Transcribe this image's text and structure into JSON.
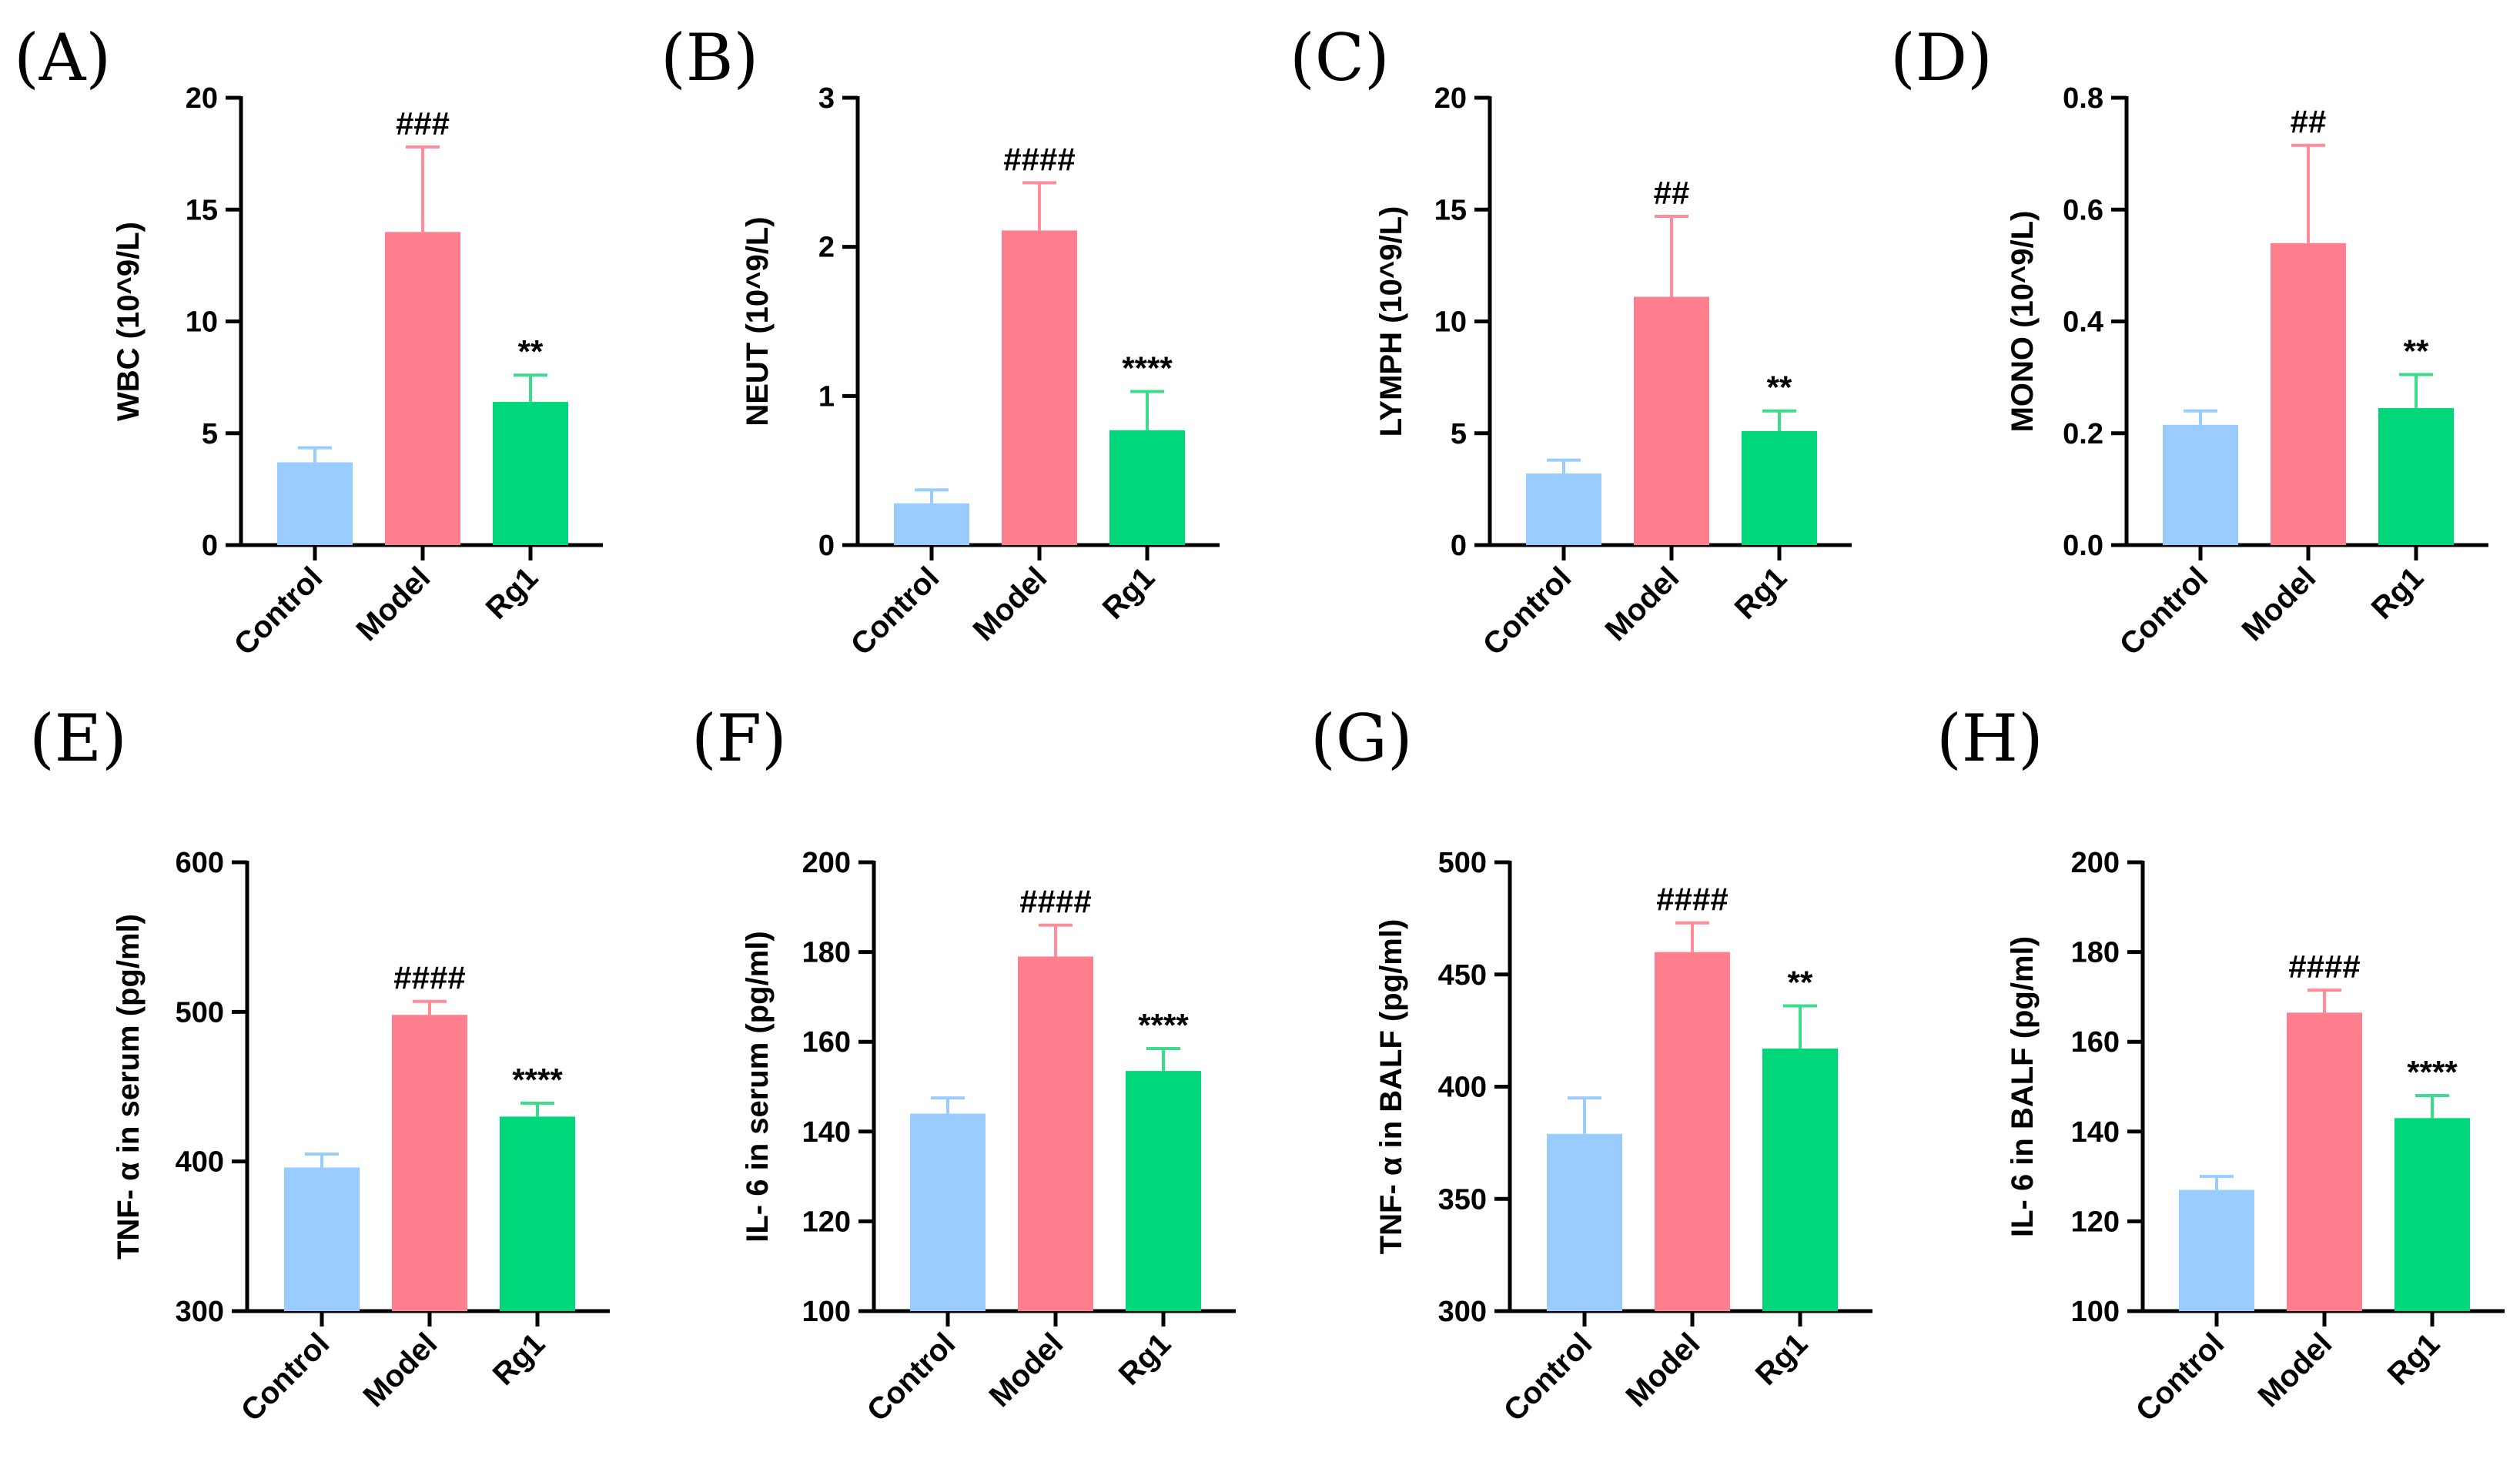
{
  "colors": {
    "control_fill": "#99CCFF",
    "model_fill": "#FF7F8E",
    "rg1_fill": "#00D67A",
    "control_err": "#99CCFF",
    "model_err": "#FF8C98",
    "rg1_err": "#3CDC8C",
    "axis": "#000000"
  },
  "chart_data": [
    {
      "type": "bar",
      "panel": "(A)",
      "ylabel": "WBC (10^9/L)",
      "categories": [
        "Control",
        "Model",
        "Rg1"
      ],
      "values": [
        3.7,
        14.0,
        6.4
      ],
      "errors": [
        0.65,
        3.8,
        1.2
      ],
      "significance": [
        "",
        "###",
        "**"
      ],
      "ylim": [
        0,
        20
      ],
      "yticks": [
        "0",
        "5",
        "10",
        "15",
        "20"
      ]
    },
    {
      "type": "bar",
      "panel": "(B)",
      "ylabel": "NEUT (10^9/L)",
      "categories": [
        "Control",
        "Model",
        "Rg1"
      ],
      "values": [
        0.28,
        2.11,
        0.77
      ],
      "errors": [
        0.09,
        0.32,
        0.26
      ],
      "significance": [
        "",
        "####",
        "****"
      ],
      "ylim": [
        0,
        3
      ],
      "yticks": [
        "0",
        "1",
        "2",
        "3"
      ]
    },
    {
      "type": "bar",
      "panel": "(C)",
      "ylabel": "LYMPH (10^9/L)",
      "categories": [
        "Control",
        "Model",
        "Rg1"
      ],
      "values": [
        3.2,
        11.1,
        5.1
      ],
      "errors": [
        0.6,
        3.6,
        0.9
      ],
      "significance": [
        "",
        "##",
        "**"
      ],
      "ylim": [
        0,
        20
      ],
      "yticks": [
        "0",
        "5",
        "10",
        "15",
        "20"
      ]
    },
    {
      "type": "bar",
      "panel": "(D)",
      "ylabel": "MONO (10^9/L)",
      "categories": [
        "Control",
        "Model",
        "Rg1"
      ],
      "values": [
        0.215,
        0.54,
        0.245
      ],
      "errors": [
        0.025,
        0.175,
        0.06
      ],
      "significance": [
        "",
        "##",
        "**"
      ],
      "ylim": [
        0,
        0.8
      ],
      "yticks": [
        "0.0",
        "0.2",
        "0.4",
        "0.6",
        "0.8"
      ]
    },
    {
      "type": "bar",
      "panel": "(E)",
      "ylabel": "TNF- α in serum (pg/ml)",
      "categories": [
        "Control",
        "Model",
        "Rg1"
      ],
      "values": [
        396,
        498,
        430
      ],
      "errors": [
        9,
        9,
        9
      ],
      "significance": [
        "",
        "####",
        "****"
      ],
      "ylim": [
        300,
        600
      ],
      "yticks": [
        "300",
        "400",
        "500",
        "600"
      ]
    },
    {
      "type": "bar",
      "panel": "(F)",
      "ylabel": "IL- 6 in serum (pg/ml)",
      "categories": [
        "Control",
        "Model",
        "Rg1"
      ],
      "values": [
        144,
        179,
        153.5
      ],
      "errors": [
        3.5,
        7,
        5
      ],
      "significance": [
        "",
        "####",
        "****"
      ],
      "ylim": [
        100,
        200
      ],
      "yticks": [
        "100",
        "120",
        "140",
        "160",
        "180",
        "200"
      ]
    },
    {
      "type": "bar",
      "panel": "(G)",
      "ylabel": "TNF- α in BALF (pg/ml)",
      "categories": [
        "Control",
        "Model",
        "Rg1"
      ],
      "values": [
        379,
        460,
        417
      ],
      "errors": [
        16,
        13,
        19
      ],
      "significance": [
        "",
        "####",
        "**"
      ],
      "ylim": [
        300,
        500
      ],
      "yticks": [
        "300",
        "350",
        "400",
        "450",
        "500"
      ]
    },
    {
      "type": "bar",
      "panel": "(H)",
      "ylabel": "IL- 6 in BALF (pg/ml)",
      "categories": [
        "Control",
        "Model",
        "Rg1"
      ],
      "values": [
        127,
        166.5,
        143
      ],
      "errors": [
        3,
        5,
        5
      ],
      "significance": [
        "",
        "####",
        "****"
      ],
      "ylim": [
        100,
        200
      ],
      "yticks": [
        "100",
        "120",
        "140",
        "160",
        "180",
        "200"
      ]
    }
  ]
}
